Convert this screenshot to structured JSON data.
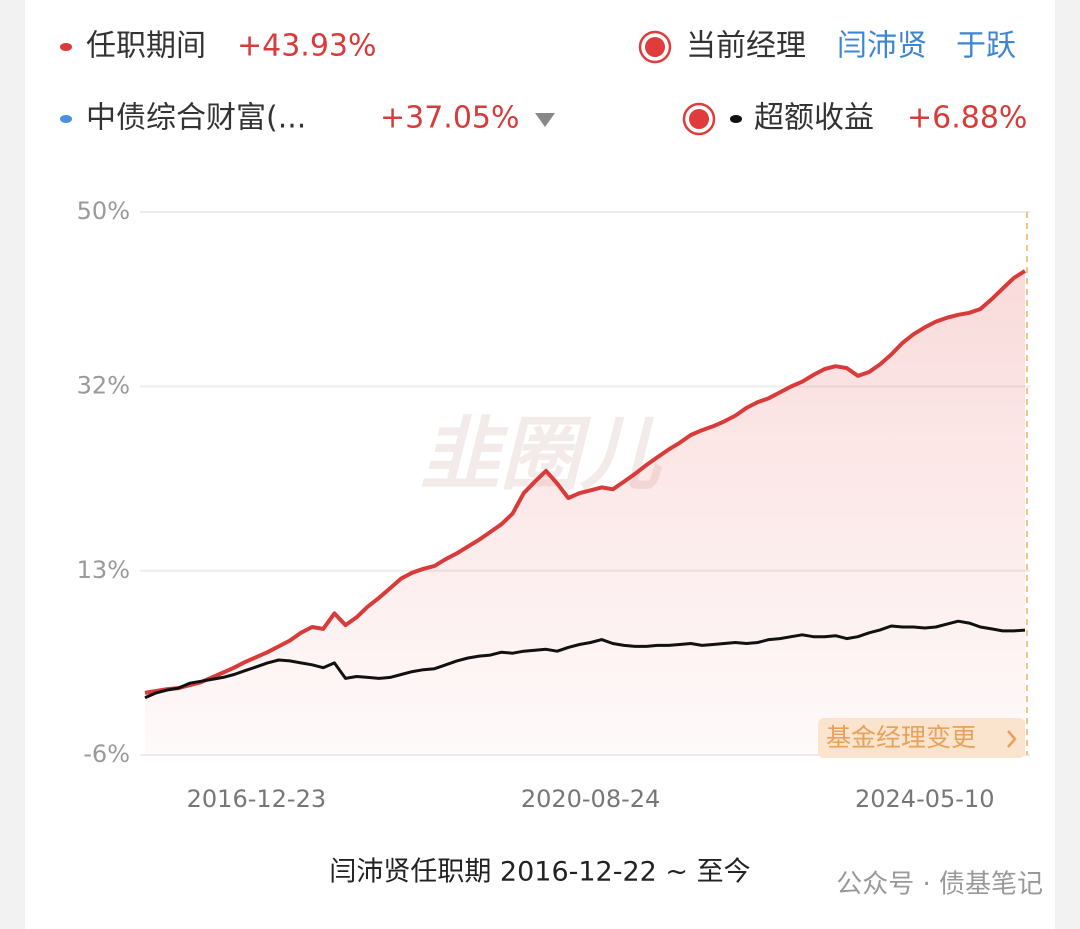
{
  "chart_data": {
    "type": "line",
    "series": [
      {
        "name": "任职期间",
        "color": "#d93a3a",
        "total": 43.93,
        "total_label": "+43.93%",
        "values": [
          0.4,
          0.6,
          0.8,
          0.9,
          1.2,
          1.5,
          2.0,
          2.5,
          3.0,
          3.6,
          4.1,
          4.6,
          5.2,
          5.8,
          6.6,
          7.2,
          7.0,
          8.6,
          7.4,
          8.2,
          9.3,
          10.2,
          11.2,
          12.2,
          12.8,
          13.2,
          13.5,
          14.2,
          14.8,
          15.5,
          16.2,
          17.0,
          17.8,
          18.9,
          21.0,
          22.2,
          23.3,
          22.0,
          20.5,
          21.0,
          21.3,
          21.6,
          21.4,
          22.2,
          23.0,
          23.9,
          24.7,
          25.5,
          26.2,
          27.0,
          27.5,
          27.9,
          28.4,
          29.0,
          29.8,
          30.4,
          30.8,
          31.4,
          32.0,
          32.5,
          33.2,
          33.8,
          34.1,
          33.9,
          33.1,
          33.5,
          34.3,
          35.3,
          36.5,
          37.4,
          38.1,
          38.7,
          39.1,
          39.4,
          39.6,
          40.0,
          41.0,
          42.1,
          43.2,
          43.93
        ]
      },
      {
        "name": "超额收益",
        "color": "#111111",
        "total": 6.88,
        "total_label": "+6.88%",
        "values": [
          -0.1,
          0.4,
          0.7,
          0.9,
          1.4,
          1.6,
          1.8,
          2.0,
          2.3,
          2.7,
          3.1,
          3.5,
          3.8,
          3.7,
          3.5,
          3.3,
          3.0,
          3.5,
          1.9,
          2.1,
          2.0,
          1.9,
          2.0,
          2.3,
          2.6,
          2.8,
          2.9,
          3.3,
          3.7,
          4.0,
          4.2,
          4.3,
          4.6,
          4.5,
          4.7,
          4.8,
          4.9,
          4.7,
          5.1,
          5.4,
          5.6,
          5.9,
          5.5,
          5.3,
          5.2,
          5.2,
          5.3,
          5.3,
          5.4,
          5.5,
          5.3,
          5.4,
          5.5,
          5.6,
          5.5,
          5.6,
          5.9,
          6.0,
          6.2,
          6.4,
          6.2,
          6.2,
          6.3,
          6.0,
          6.2,
          6.6,
          6.9,
          7.3,
          7.2,
          7.2,
          7.1,
          7.2,
          7.5,
          7.8,
          7.6,
          7.2,
          7.0,
          6.8,
          6.8,
          6.88
        ]
      }
    ],
    "benchmark": {
      "name": "中债综合财富(...",
      "color": "#4a8fe0",
      "total": 37.05,
      "total_label": "+37.05%"
    },
    "manager_label": "当前经理",
    "managers": [
      "闫沛贤",
      "于跃"
    ],
    "manager_change_label": "基金经理变更",
    "caption": "闫沛贤任职期 2016-12-22 ~ 至今",
    "categories": [
      null,
      null,
      null,
      null,
      null,
      null,
      null,
      null,
      null,
      null,
      "2016-12-23",
      null,
      null,
      null,
      null,
      null,
      null,
      null,
      null,
      null,
      null,
      null,
      null,
      null,
      null,
      null,
      null,
      null,
      null,
      null,
      null,
      null,
      null,
      null,
      null,
      null,
      null,
      null,
      null,
      null,
      "2020-08-24",
      null,
      null,
      null,
      null,
      null,
      null,
      null,
      null,
      null,
      null,
      null,
      null,
      null,
      null,
      null,
      null,
      null,
      null,
      null,
      null,
      null,
      null,
      null,
      null,
      null,
      null,
      null,
      null,
      null,
      "2024-05-10",
      null,
      null,
      null,
      null,
      null,
      null,
      null,
      null,
      null
    ],
    "ylim": [
      -6,
      50
    ],
    "yticks": [
      {
        "value": -6,
        "label": "-6%"
      },
      {
        "value": 13,
        "label": "13%"
      },
      {
        "value": 32,
        "label": "32%"
      },
      {
        "value": 50,
        "label": "50%"
      }
    ],
    "grid": true
  },
  "watermark": "公众号 · 债基笔记",
  "logo_watermark": "韭圈儿"
}
